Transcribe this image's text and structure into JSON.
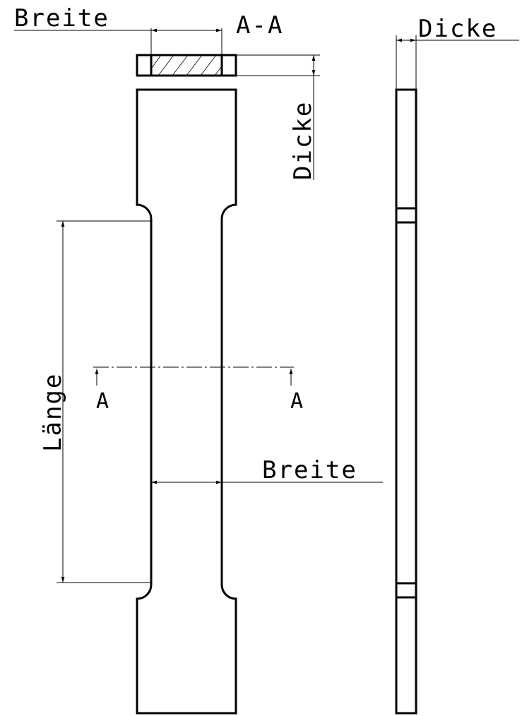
{
  "drawing": {
    "section_title": "A-A",
    "labels": {
      "width_top": "Breite",
      "width_middle": "Breite",
      "thickness_section": "Dicke",
      "thickness_side": "Dicke",
      "length": "Länge",
      "section_marker_left": "A",
      "section_marker_right": "A"
    }
  }
}
